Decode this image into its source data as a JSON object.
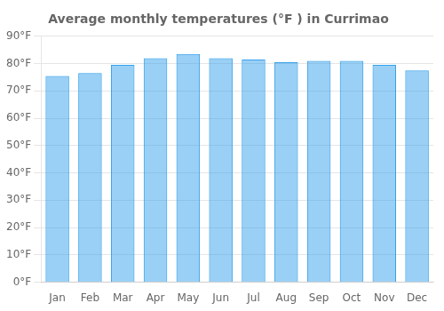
{
  "chart_data": {
    "type": "bar",
    "title": "Average monthly temperatures (°F ) in Currimao",
    "categories": [
      "Jan",
      "Feb",
      "Mar",
      "Apr",
      "May",
      "Jun",
      "Jul",
      "Aug",
      "Sep",
      "Oct",
      "Nov",
      "Dec"
    ],
    "values": [
      75.5,
      76.5,
      79.5,
      82.0,
      83.5,
      82.0,
      81.5,
      80.5,
      81.0,
      81.0,
      79.5,
      77.5
    ],
    "ylim": [
      0,
      90
    ],
    "yticks": [
      {
        "value": 0,
        "label": "0°F"
      },
      {
        "value": 10,
        "label": "10°F"
      },
      {
        "value": 20,
        "label": "20°F"
      },
      {
        "value": 30,
        "label": "30°F"
      },
      {
        "value": 40,
        "label": "40°F"
      },
      {
        "value": 50,
        "label": "50°F"
      },
      {
        "value": 60,
        "label": "60°F"
      },
      {
        "value": 70,
        "label": "70°F"
      },
      {
        "value": 80,
        "label": "80°F"
      },
      {
        "value": 90,
        "label": "90°F"
      }
    ],
    "grid": true
  }
}
